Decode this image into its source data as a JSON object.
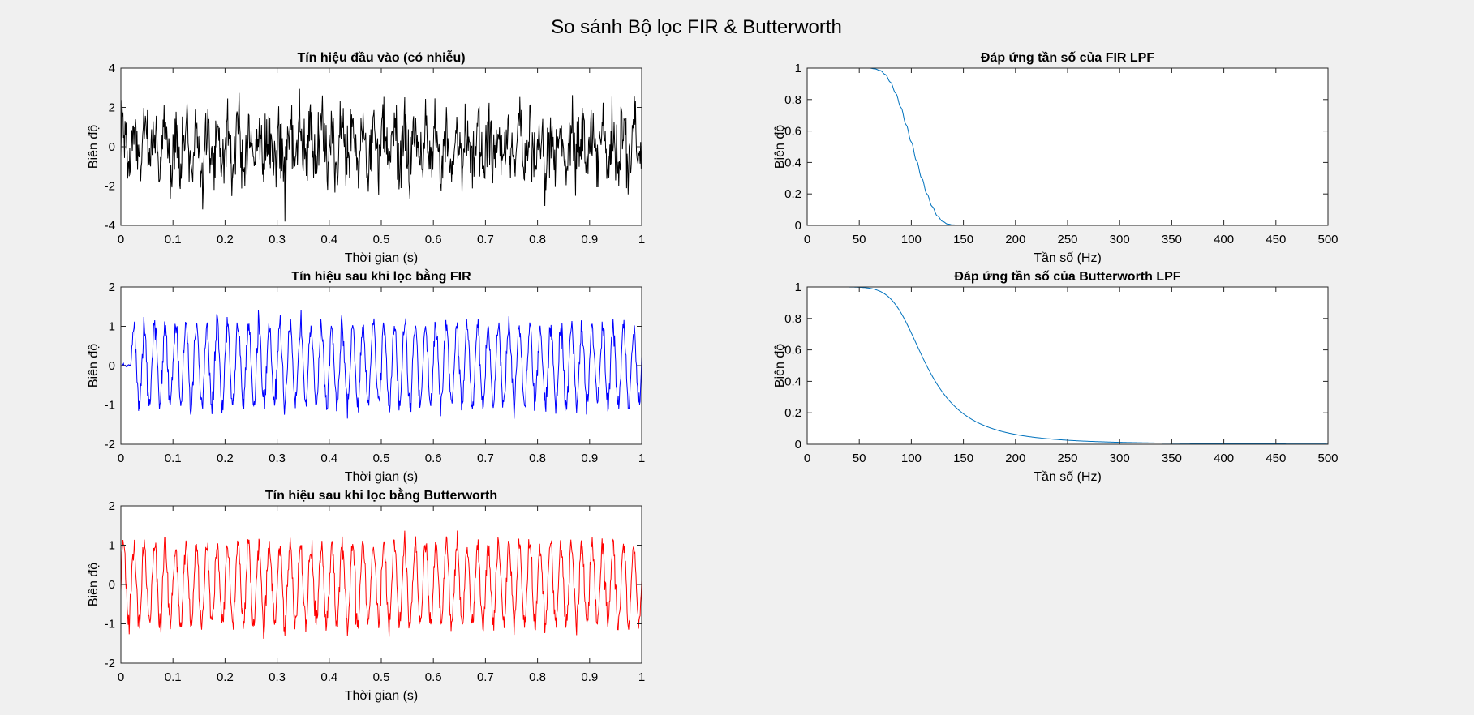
{
  "figure_title": "So sánh Bộ lọc FIR & Butterworth",
  "chart_data": [
    {
      "type": "line",
      "title": "Tín hiệu đầu vào (có nhiễu)",
      "xlabel": "Thời gian (s)",
      "ylabel": "Biên độ",
      "xlim": [
        0,
        1
      ],
      "ylim": [
        -4,
        4
      ],
      "xticks": [
        "0",
        "0.1",
        "0.2",
        "0.3",
        "0.4",
        "0.5",
        "0.6",
        "0.7",
        "0.8",
        "0.9",
        "1"
      ],
      "yticks": [
        "-4",
        "-2",
        "0",
        "2",
        "4"
      ],
      "grid": false,
      "color": "#000000",
      "signal": {
        "fs": 1000,
        "duration_s": 1,
        "tone_hz": [
          50,
          120
        ],
        "amplitude": [
          1.0,
          0.3
        ],
        "noise_std": 0.8,
        "delay_s": 0
      }
    },
    {
      "type": "line",
      "title": "Đáp ứng tần số của FIR LPF",
      "xlabel": "Tần số (Hz)",
      "ylabel": "Biên độ",
      "xlim": [
        0,
        500
      ],
      "ylim": [
        0,
        1
      ],
      "xticks": [
        "0",
        "50",
        "100",
        "150",
        "200",
        "250",
        "300",
        "350",
        "400",
        "450",
        "500"
      ],
      "yticks": [
        "0",
        "0.2",
        "0.4",
        "0.6",
        "0.8",
        "1"
      ],
      "grid": false,
      "color": "#0072BD",
      "response": {
        "x": [
          0,
          50,
          60,
          65,
          70,
          75,
          80,
          85,
          90,
          95,
          100,
          105,
          110,
          115,
          120,
          125,
          130,
          135,
          140,
          150,
          200,
          300,
          400,
          500
        ],
        "y": [
          1,
          1,
          1,
          0.995,
          0.985,
          0.96,
          0.91,
          0.84,
          0.75,
          0.64,
          0.53,
          0.41,
          0.3,
          0.2,
          0.12,
          0.06,
          0.025,
          0.008,
          0.003,
          0.001,
          0.0005,
          0.0003,
          0.0002,
          0.0001
        ]
      }
    },
    {
      "type": "line",
      "title": "Tín hiệu sau khi lọc bằng FIR",
      "xlabel": "Thời gian (s)",
      "ylabel": "Biên độ",
      "xlim": [
        0,
        1
      ],
      "ylim": [
        -2,
        2
      ],
      "xticks": [
        "0",
        "0.1",
        "0.2",
        "0.3",
        "0.4",
        "0.5",
        "0.6",
        "0.7",
        "0.8",
        "0.9",
        "1"
      ],
      "yticks": [
        "-2",
        "-1",
        "0",
        "1",
        "2"
      ],
      "grid": false,
      "color": "#0000FF",
      "signal": {
        "fs": 1000,
        "duration_s": 1,
        "tone_hz": [
          50
        ],
        "amplitude": [
          1.0
        ],
        "noise_std": 0.16,
        "delay_s": 0.02
      }
    },
    {
      "type": "line",
      "title": "Đáp ứng tần số của Butterworth LPF",
      "xlabel": "Tần số (Hz)",
      "ylabel": "Biên độ",
      "xlim": [
        0,
        500
      ],
      "ylim": [
        0,
        1
      ],
      "xticks": [
        "0",
        "50",
        "100",
        "150",
        "200",
        "250",
        "300",
        "350",
        "400",
        "450",
        "500"
      ],
      "yticks": [
        "0",
        "0.2",
        "0.4",
        "0.6",
        "0.8",
        "1"
      ],
      "grid": false,
      "color": "#0072BD",
      "response": {
        "butterworth_order": 4,
        "cutoff_hz": 100
      }
    },
    {
      "type": "line",
      "title": "Tín hiệu sau khi lọc bằng Butterworth",
      "xlabel": "Thời gian (s)",
      "ylabel": "Biên độ",
      "xlim": [
        0,
        1
      ],
      "ylim": [
        -2,
        2
      ],
      "xticks": [
        "0",
        "0.1",
        "0.2",
        "0.3",
        "0.4",
        "0.5",
        "0.6",
        "0.7",
        "0.8",
        "0.9",
        "1"
      ],
      "yticks": [
        "-2",
        "-1",
        "0",
        "1",
        "2"
      ],
      "grid": false,
      "color": "#FF0000",
      "signal": {
        "fs": 1000,
        "duration_s": 1,
        "tone_hz": [
          50
        ],
        "amplitude": [
          1.0
        ],
        "noise_std": 0.16,
        "delay_s": 0
      }
    }
  ]
}
